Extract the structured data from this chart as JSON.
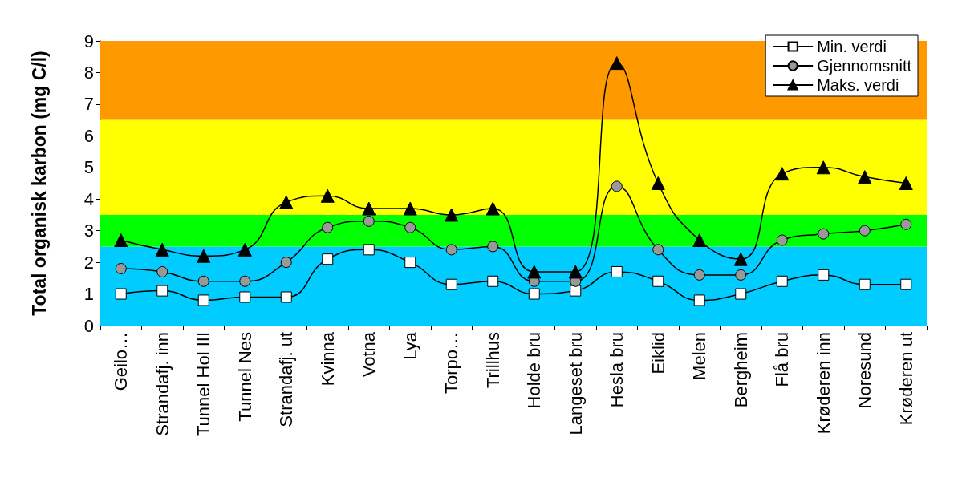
{
  "chart_data": {
    "type": "line",
    "ylabel": "Total organisk karbon (mg C/l)",
    "categories": [
      "Geilo…",
      "Strandafj. inn",
      "Tunnel Hol III",
      "Tunnel Nes",
      "Strandafj. ut",
      "Kvinna",
      "Votna",
      "Lya",
      "Torpo…",
      "Trillhus",
      "Holde bru",
      "Langeset bru",
      "Hesla bru",
      "Eiklid",
      "Melen",
      "Bergheim",
      "Flå bru",
      "Krøderen inn",
      "Noresund",
      "Krøderen ut"
    ],
    "series": [
      {
        "name": "Min. verdi",
        "color": "#ffffff",
        "marker": "square",
        "values": [
          1.0,
          1.1,
          0.8,
          0.9,
          0.9,
          2.1,
          2.4,
          2.0,
          1.3,
          1.4,
          1.0,
          1.1,
          1.7,
          1.4,
          0.8,
          1.0,
          1.4,
          1.6,
          1.3,
          1.3
        ]
      },
      {
        "name": "Gjennomsnitt",
        "color": "#999999",
        "marker": "circle",
        "values": [
          1.8,
          1.7,
          1.4,
          1.4,
          2.0,
          3.1,
          3.3,
          3.1,
          2.4,
          2.5,
          1.4,
          1.4,
          4.4,
          2.4,
          1.6,
          1.6,
          2.7,
          2.9,
          3.0,
          3.2
        ]
      },
      {
        "name": "Maks. verdi",
        "color": "#000000",
        "marker": "triangle",
        "values": [
          2.7,
          2.4,
          2.2,
          2.4,
          3.9,
          4.1,
          3.7,
          3.7,
          3.5,
          3.7,
          1.7,
          1.7,
          8.3,
          4.5,
          2.7,
          2.1,
          4.8,
          5.0,
          4.7,
          4.5
        ]
      }
    ],
    "ylim": [
      0,
      9
    ],
    "yticks": [
      0,
      1,
      2,
      3,
      4,
      5,
      6,
      7,
      8,
      9
    ],
    "grid": false,
    "legend": "top right",
    "bands": [
      {
        "axis": "y",
        "from": 0,
        "to": 2.5,
        "color": "#00ccff"
      },
      {
        "axis": "y",
        "from": 2.5,
        "to": 3.5,
        "color": "#00ff00"
      },
      {
        "axis": "y",
        "from": 3.5,
        "to": 6.5,
        "color": "#ffff00"
      },
      {
        "axis": "y",
        "from": 6.5,
        "to": 9,
        "color": "#ff9900"
      }
    ]
  }
}
